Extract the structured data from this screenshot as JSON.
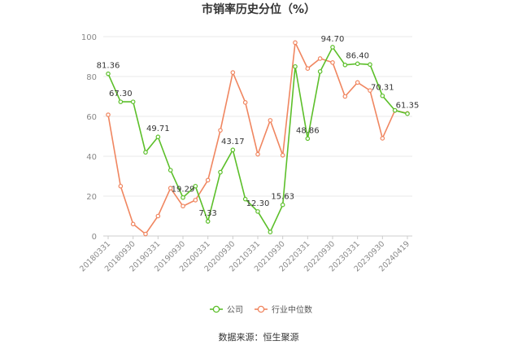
{
  "chart_data": {
    "type": "line",
    "title": "市销率历史分位（%）",
    "source": "数据来源：恒生聚源",
    "x_tick_labels": [
      "20180331",
      "20180930",
      "20190331",
      "20190930",
      "20200331",
      "20200930",
      "20210331",
      "20210930",
      "20220331",
      "20220930",
      "20230331",
      "20230930",
      "20240419"
    ],
    "ylim": [
      0,
      100
    ],
    "y_ticks": [
      0,
      20,
      40,
      60,
      80,
      100
    ],
    "grid": true,
    "legend_position": "bottom",
    "series": [
      {
        "name": "公司",
        "color": "#5cbf2a",
        "values": [
          81.36,
          67.3,
          67.3,
          42.0,
          49.71,
          33.0,
          19.29,
          25.0,
          7.33,
          32.0,
          43.17,
          18.5,
          12.3,
          2.0,
          15.63,
          85.0,
          48.86,
          82.5,
          94.7,
          85.8,
          86.4,
          86.0,
          70.31,
          63.0,
          61.35
        ]
      },
      {
        "name": "行业中位数",
        "color": "#f08660",
        "values": [
          60.8,
          25.0,
          6.0,
          1.0,
          10.0,
          24.0,
          15.0,
          18.0,
          28.0,
          53.0,
          82.0,
          67.0,
          41.0,
          58.0,
          40.5,
          97.0,
          84.0,
          89.0,
          87.0,
          70.0,
          77.0,
          73.0,
          49.0,
          63.0,
          61.5
        ]
      }
    ],
    "data_labels": [
      {
        "series": 0,
        "index": 0,
        "text": "81.36"
      },
      {
        "series": 0,
        "index": 1,
        "text": "67.30"
      },
      {
        "series": 0,
        "index": 4,
        "text": "49.71"
      },
      {
        "series": 0,
        "index": 6,
        "text": "19.29"
      },
      {
        "series": 0,
        "index": 8,
        "text": "7.33"
      },
      {
        "series": 0,
        "index": 10,
        "text": "43.17"
      },
      {
        "series": 0,
        "index": 12,
        "text": "12.30"
      },
      {
        "series": 0,
        "index": 14,
        "text": "15.63"
      },
      {
        "series": 0,
        "index": 16,
        "text": "48.86"
      },
      {
        "series": 0,
        "index": 18,
        "text": "94.70"
      },
      {
        "series": 0,
        "index": 20,
        "text": "86.40"
      },
      {
        "series": 0,
        "index": 22,
        "text": "70.31"
      },
      {
        "series": 0,
        "index": 24,
        "text": "61.35"
      }
    ]
  }
}
